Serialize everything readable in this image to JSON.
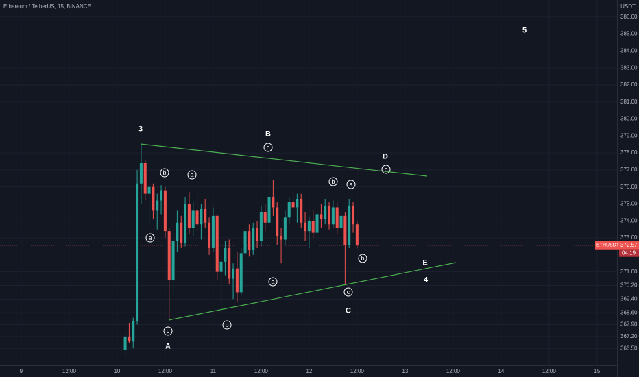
{
  "chart_data": {
    "type": "candlestick",
    "title": "Ethereum / TetherUS, 15, BINANCE",
    "currency": "USDT",
    "x": [
      26,
      27,
      28,
      29,
      30,
      31,
      32,
      33,
      34,
      35,
      36,
      37,
      38,
      39,
      40,
      41,
      42,
      43,
      44,
      45,
      46,
      47,
      48,
      49,
      50,
      51,
      52,
      53,
      54,
      55,
      56,
      57,
      58,
      59,
      60,
      61,
      62,
      63,
      64,
      65,
      66,
      67,
      68,
      69,
      70,
      71,
      72,
      73,
      74,
      75,
      76,
      77,
      78,
      79,
      80,
      81,
      82,
      83,
      84
    ],
    "open": [
      366.4,
      367.2,
      366.9,
      368.1,
      376.2,
      377.4,
      375.6,
      376.0,
      374.6,
      375.2,
      375.8,
      373.4,
      370.5,
      372.8,
      373.9,
      372.7,
      375.0,
      373.6,
      374.6,
      373.8,
      374.7,
      373.9,
      372.4,
      374.3,
      371.0,
      371.6,
      372.4,
      370.6,
      371.2,
      369.8,
      372.1,
      373.4,
      372.3,
      373.6,
      372.8,
      374.5,
      373.9,
      375.4,
      374.8,
      373.1,
      372.9,
      374.2,
      375.1,
      374.8,
      375.3,
      373.9,
      373.4,
      374.0,
      373.3,
      374.4,
      374.1,
      374.9,
      373.8,
      374.8,
      373.6,
      374.3,
      372.6,
      374.9,
      373.8
    ],
    "high": [
      367.5,
      368.0,
      368.3,
      377.0,
      378.5,
      377.6,
      376.4,
      376.2,
      375.6,
      376.1,
      376.0,
      373.6,
      373.2,
      374.6,
      374.3,
      375.4,
      375.7,
      375.1,
      375.5,
      375.0,
      375.3,
      374.2,
      374.8,
      374.4,
      372.0,
      372.8,
      372.9,
      371.5,
      372.2,
      372.4,
      373.7,
      373.8,
      373.9,
      374.0,
      374.9,
      375.0,
      377.6,
      376.4,
      375.1,
      373.6,
      374.6,
      375.4,
      375.9,
      375.6,
      375.6,
      374.5,
      374.2,
      374.6,
      374.7,
      375.0,
      375.3,
      375.1,
      375.2,
      375.1,
      374.7,
      374.5,
      375.3,
      375.1,
      374.0
    ],
    "low": [
      366.0,
      366.8,
      366.5,
      367.9,
      375.0,
      375.2,
      373.8,
      374.1,
      373.5,
      374.4,
      373.0,
      368.2,
      369.8,
      372.2,
      372.4,
      372.5,
      373.2,
      373.1,
      373.4,
      372.9,
      373.6,
      372.0,
      372.2,
      370.5,
      368.9,
      370.8,
      370.3,
      369.4,
      369.2,
      369.6,
      371.8,
      371.9,
      372.0,
      372.4,
      372.5,
      373.4,
      373.7,
      374.3,
      372.6,
      371.5,
      372.6,
      373.8,
      374.5,
      373.9,
      373.6,
      372.8,
      372.4,
      373.0,
      373.1,
      373.6,
      373.8,
      373.5,
      373.6,
      373.2,
      373.0,
      370.3,
      372.4,
      373.3,
      372.4
    ],
    "close": [
      367.2,
      366.9,
      368.1,
      376.2,
      377.4,
      375.6,
      376.0,
      374.6,
      375.2,
      375.8,
      373.4,
      370.5,
      372.8,
      373.9,
      372.7,
      375.0,
      373.6,
      374.6,
      373.8,
      374.7,
      373.9,
      372.4,
      374.3,
      371.0,
      371.6,
      372.4,
      370.6,
      371.2,
      369.8,
      372.1,
      373.4,
      372.3,
      373.6,
      372.8,
      374.5,
      373.9,
      375.4,
      374.8,
      373.1,
      372.9,
      374.2,
      375.1,
      374.8,
      375.3,
      373.9,
      373.4,
      374.0,
      373.3,
      374.4,
      374.1,
      374.9,
      373.8,
      374.8,
      373.6,
      374.3,
      372.6,
      374.9,
      373.8,
      372.6
    ],
    "up_color": "#26a69a",
    "down_color": "#ef5350",
    "trendline_color": "#4caf50",
    "xlim": [
      -5.3,
      149
    ],
    "xticks": [
      {
        "value": 0,
        "label": "9"
      },
      {
        "value": 12,
        "label": "12:00"
      },
      {
        "value": 24,
        "label": "10"
      },
      {
        "value": 36,
        "label": "12:00"
      },
      {
        "value": 48,
        "label": "11"
      },
      {
        "value": 60,
        "label": "12:00"
      },
      {
        "value": 72,
        "label": "12"
      },
      {
        "value": 84,
        "label": "12:00"
      },
      {
        "value": 96,
        "label": "13"
      },
      {
        "value": 108,
        "label": "12:00"
      },
      {
        "value": 120,
        "label": "14"
      },
      {
        "value": 132,
        "label": "12:00"
      },
      {
        "value": 144,
        "label": "15"
      }
    ],
    "ylim": [
      365.5,
      387.0
    ],
    "yticks": [
      {
        "value": 386,
        "label": "386.00"
      },
      {
        "value": 385,
        "label": "385.00"
      },
      {
        "value": 384,
        "label": "384.00"
      },
      {
        "value": 383,
        "label": "383.00"
      },
      {
        "value": 382,
        "label": "382.00"
      },
      {
        "value": 381,
        "label": "381.00"
      },
      {
        "value": 380,
        "label": "380.00"
      },
      {
        "value": 379,
        "label": "379.00"
      },
      {
        "value": 378,
        "label": "378.00"
      },
      {
        "value": 377,
        "label": "377.00"
      },
      {
        "value": 376,
        "label": "376.00"
      },
      {
        "value": 375,
        "label": "375.00"
      },
      {
        "value": 374,
        "label": "374.00"
      },
      {
        "value": 373,
        "label": "373.00"
      },
      {
        "value": 371,
        "label": "371.00"
      },
      {
        "value": 370.2,
        "label": "370.20"
      },
      {
        "value": 369.4,
        "label": "369.40"
      },
      {
        "value": 368.6,
        "label": "368.60"
      },
      {
        "value": 367.9,
        "label": "367.90"
      },
      {
        "value": 367.2,
        "label": "367.20"
      },
      {
        "value": 366.5,
        "label": "366.50"
      }
    ],
    "grid": true,
    "last_price": {
      "symbol": "ETHUSDT",
      "value": 372.57,
      "countdown": "04:19"
    },
    "annotations": [
      "3",
      "B",
      "D",
      "E",
      "4",
      "5",
      "A",
      "C",
      "b",
      "a",
      "c",
      "b",
      "a",
      "c",
      "a",
      "c",
      "b",
      "a",
      "c",
      "b"
    ]
  }
}
